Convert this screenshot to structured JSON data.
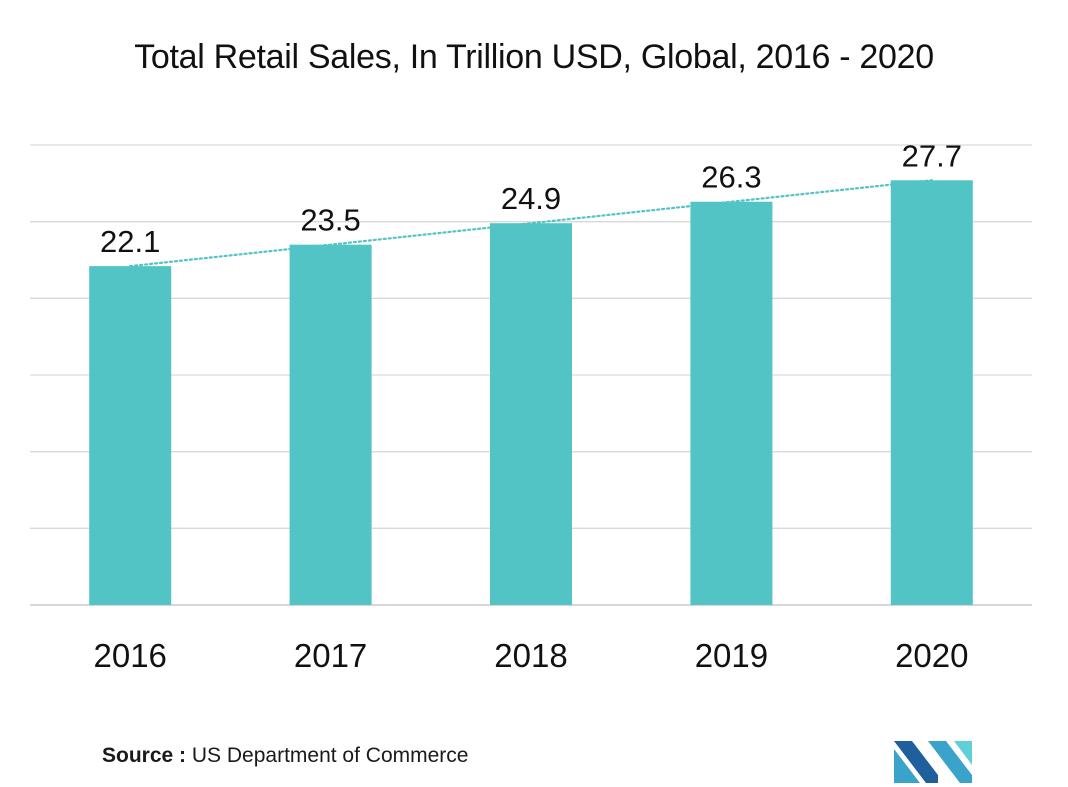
{
  "chart_data": {
    "type": "bar",
    "title": "Total Retail Sales, In Trillion USD, Global, 2016 - 2020",
    "categories": [
      "2016",
      "2017",
      "2018",
      "2019",
      "2020"
    ],
    "values": [
      22.1,
      23.5,
      24.9,
      26.3,
      27.7
    ],
    "data_labels": [
      "22.1",
      "23.5",
      "24.9",
      "26.3",
      "27.7"
    ],
    "xlabel": "",
    "ylabel": "",
    "ylim": [
      0,
      30
    ],
    "y_axis_visible": false,
    "grid": true,
    "trendline": "linear, dotted",
    "bar_color": "#52C4C6",
    "trendline_color": "#52C4C6",
    "grid_color": "#d9d9d9"
  },
  "source": {
    "label": "Source :",
    "text": " US Department of Commerce"
  },
  "logo": {
    "icon": "mordor-intelligence-logo-icon",
    "colors": [
      "#1f5f9e",
      "#3aa3c9",
      "#5fd0d6"
    ]
  }
}
